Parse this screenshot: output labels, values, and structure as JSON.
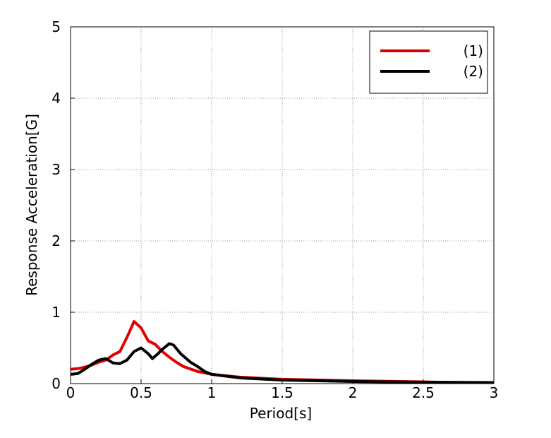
{
  "chart_data": {
    "type": "line",
    "xlabel": "Period[s]",
    "ylabel": "Response Acceleration[G]",
    "xlim": [
      0,
      3
    ],
    "xticks": [
      0,
      0.5,
      1,
      1.5,
      2,
      2.5,
      3
    ],
    "ylim": [
      0,
      5
    ],
    "yticks": [
      0,
      1,
      2,
      3,
      4,
      5
    ],
    "grid": true,
    "legend": "upper-right",
    "series": [
      {
        "name": "(1)",
        "color": "#e00000",
        "x": [
          0,
          0.05,
          0.1,
          0.15,
          0.2,
          0.25,
          0.3,
          0.35,
          0.4,
          0.45,
          0.5,
          0.55,
          0.6,
          0.65,
          0.7,
          0.75,
          0.8,
          0.9,
          1.0,
          1.2,
          1.5,
          2.0,
          2.5,
          2.6
        ],
        "values": [
          0.2,
          0.21,
          0.23,
          0.26,
          0.3,
          0.33,
          0.4,
          0.45,
          0.65,
          0.87,
          0.78,
          0.6,
          0.55,
          0.45,
          0.37,
          0.3,
          0.24,
          0.17,
          0.13,
          0.09,
          0.06,
          0.04,
          0.025,
          0.02
        ]
      },
      {
        "name": "(2)",
        "color": "#000000",
        "x": [
          0,
          0.05,
          0.1,
          0.15,
          0.2,
          0.25,
          0.3,
          0.35,
          0.4,
          0.45,
          0.5,
          0.55,
          0.58,
          0.62,
          0.65,
          0.7,
          0.73,
          0.78,
          0.85,
          0.9,
          0.95,
          1.0,
          1.2,
          1.5,
          2.0,
          2.5,
          3.0
        ],
        "values": [
          0.13,
          0.14,
          0.2,
          0.27,
          0.33,
          0.35,
          0.29,
          0.28,
          0.33,
          0.45,
          0.5,
          0.42,
          0.35,
          0.42,
          0.48,
          0.56,
          0.54,
          0.42,
          0.3,
          0.24,
          0.17,
          0.13,
          0.08,
          0.05,
          0.03,
          0.02,
          0.015
        ]
      }
    ]
  }
}
